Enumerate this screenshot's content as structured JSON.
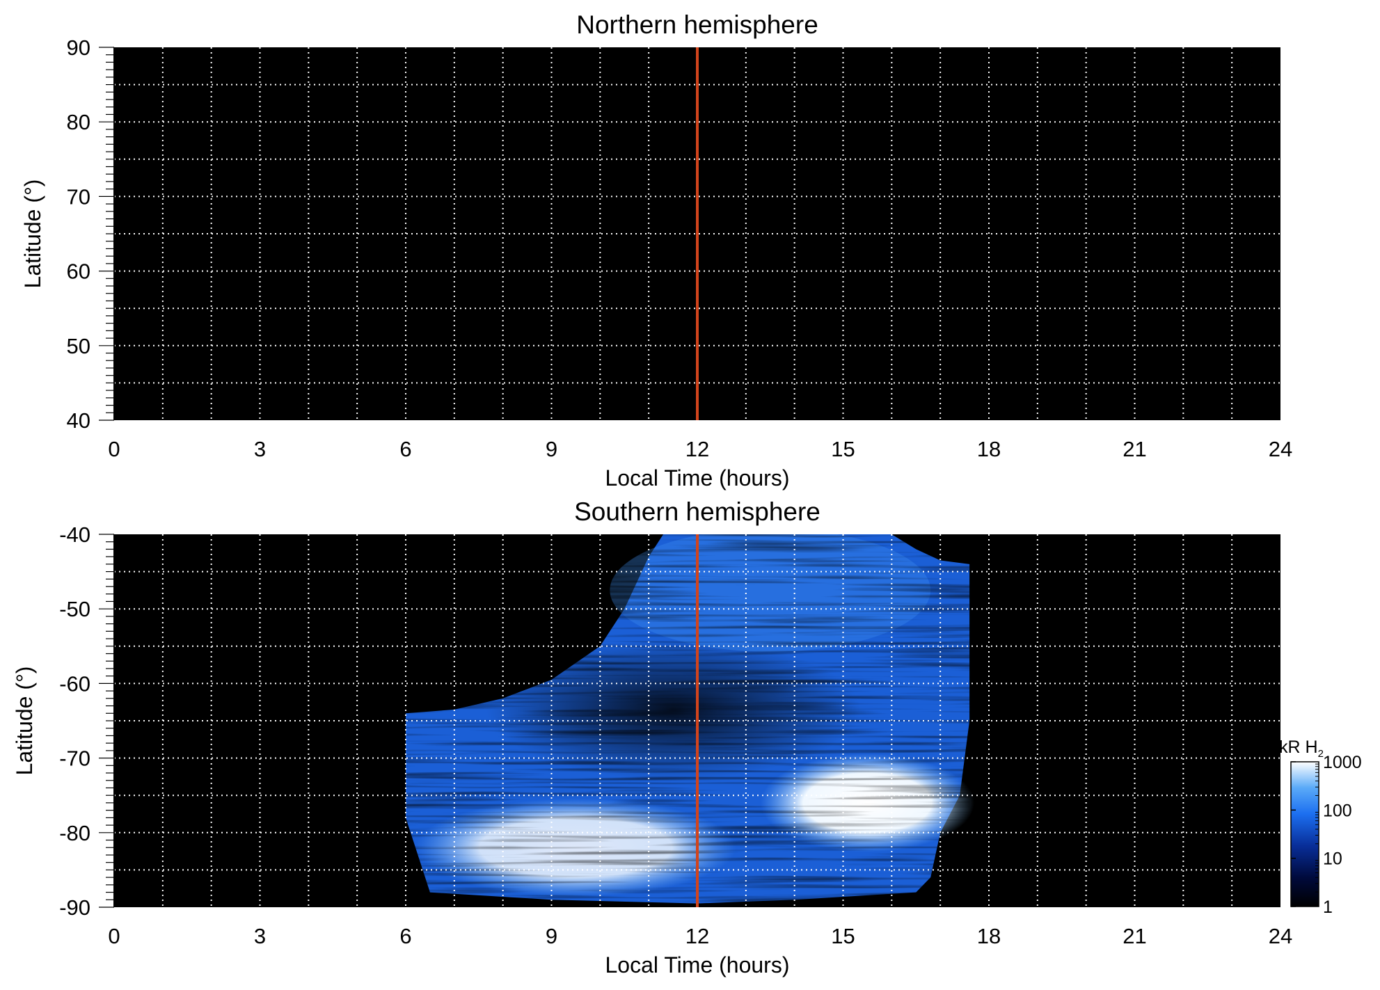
{
  "chart_data": [
    {
      "type": "heatmap",
      "title": "Northern hemisphere",
      "xlabel": "Local Time (hours)",
      "ylabel": "Latitude (°)",
      "xlim": [
        0,
        24
      ],
      "ylim": [
        40,
        90
      ],
      "x_ticks": [
        "0",
        "3",
        "6",
        "9",
        "12",
        "15",
        "18",
        "21",
        "24"
      ],
      "y_ticks": [
        "90",
        "80",
        "70",
        "60",
        "50",
        "40"
      ],
      "y_tick_values": [
        90,
        80,
        70,
        60,
        50,
        40
      ],
      "grid": "dotted white, every 1 hour and every 5 degrees",
      "background": "#000000",
      "reference_line": {
        "x": 12,
        "color": "#d2441c"
      },
      "coverage": []
    },
    {
      "type": "heatmap",
      "title": "Southern hemisphere",
      "xlabel": "Local Time (hours)",
      "ylabel": "Latitude (°)",
      "xlim": [
        0,
        24
      ],
      "ylim": [
        -90,
        -40
      ],
      "x_ticks": [
        "0",
        "3",
        "6",
        "9",
        "12",
        "15",
        "18",
        "21",
        "24"
      ],
      "y_ticks": [
        "-40",
        "-50",
        "-60",
        "-70",
        "-80",
        "-90"
      ],
      "y_tick_values": [
        -40,
        -50,
        -60,
        -70,
        -80,
        -90
      ],
      "grid": "dotted white, every 1 hour and every 5 degrees",
      "background": "#000000",
      "reference_line": {
        "x": 12,
        "color": "#d2441c"
      },
      "coverage_boundary_top": [
        [
          6.0,
          -64
        ],
        [
          7.0,
          -63.5
        ],
        [
          8.0,
          -62
        ],
        [
          9.0,
          -59.5
        ],
        [
          10.0,
          -55
        ],
        [
          10.5,
          -50
        ],
        [
          11.0,
          -43
        ],
        [
          11.3,
          -40
        ],
        [
          16.0,
          -40
        ],
        [
          16.5,
          -42
        ],
        [
          17.0,
          -43.5
        ],
        [
          17.6,
          -44
        ]
      ],
      "coverage_right_edge": [
        [
          17.6,
          -44
        ],
        [
          17.6,
          -65
        ],
        [
          17.4,
          -75
        ],
        [
          17.0,
          -80
        ],
        [
          16.8,
          -86
        ],
        [
          16.5,
          -88
        ]
      ],
      "coverage_bottom": [
        [
          6.5,
          -88
        ],
        [
          9.0,
          -89
        ],
        [
          12.0,
          -89.5
        ],
        [
          14.0,
          -89
        ],
        [
          16.5,
          -88
        ]
      ],
      "coverage_left_edge": [
        [
          6.0,
          -64
        ],
        [
          6.0,
          -78
        ],
        [
          6.3,
          -84
        ],
        [
          6.5,
          -88
        ]
      ],
      "intensity_regions": [
        {
          "region": "main auroral oval (bright)",
          "lat_range": [
            -88,
            -76
          ],
          "lt_range": [
            6.5,
            12.5
          ],
          "level_kR": 300
        },
        {
          "region": "afternoon bright spot",
          "lat_range": [
            -82,
            -70
          ],
          "lt_range": [
            13.5,
            17.5
          ],
          "level_kR": 1000
        },
        {
          "region": "polar cap / dark region",
          "lat_range": [
            -72,
            -55
          ],
          "lt_range": [
            8,
            15
          ],
          "level_kR": 10
        },
        {
          "region": "equatorward background",
          "lat_range": [
            -55,
            -40
          ],
          "lt_range": [
            10.5,
            16.5
          ],
          "level_kR": 80
        }
      ]
    }
  ],
  "colorbar": {
    "label": "kR H",
    "label_subscript": "2",
    "ticks": [
      "1000",
      "100",
      "10",
      "1"
    ],
    "tick_values": [
      1000,
      100,
      10,
      1
    ],
    "scale": "log",
    "colors": [
      "#000000",
      "#000a3c",
      "#082e99",
      "#1c6ff0",
      "#5aaaf8",
      "#ffffff"
    ]
  }
}
